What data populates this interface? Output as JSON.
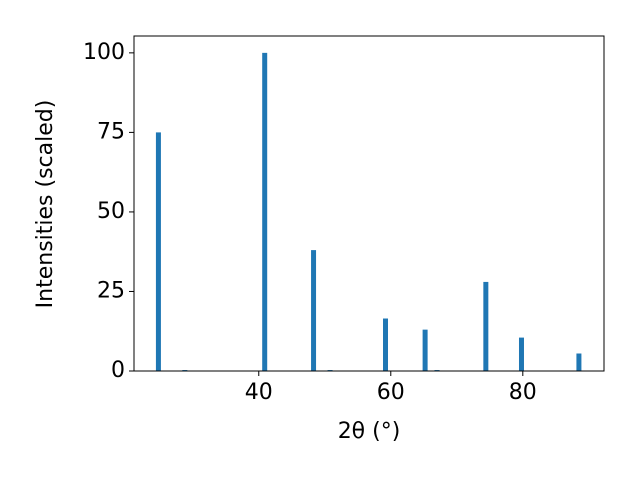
{
  "chart_data": {
    "type": "bar",
    "x_label": "2θ (°)",
    "y_label": "Intensities (scaled)",
    "x": [
      24.8,
      28.8,
      40.9,
      48.3,
      50.8,
      59.2,
      65.2,
      67.0,
      74.4,
      79.8,
      88.5
    ],
    "values": [
      75,
      0.3,
      100,
      38,
      0.3,
      16.5,
      13,
      0.3,
      28,
      10.5,
      5.5
    ],
    "color": "#1f77b4",
    "xlim": [
      21.1,
      92.3
    ],
    "xticks": [
      40,
      60,
      80
    ],
    "ylim": [
      0,
      105.3
    ],
    "yticks": [
      0,
      25,
      50,
      75,
      100
    ],
    "grid": false
  }
}
